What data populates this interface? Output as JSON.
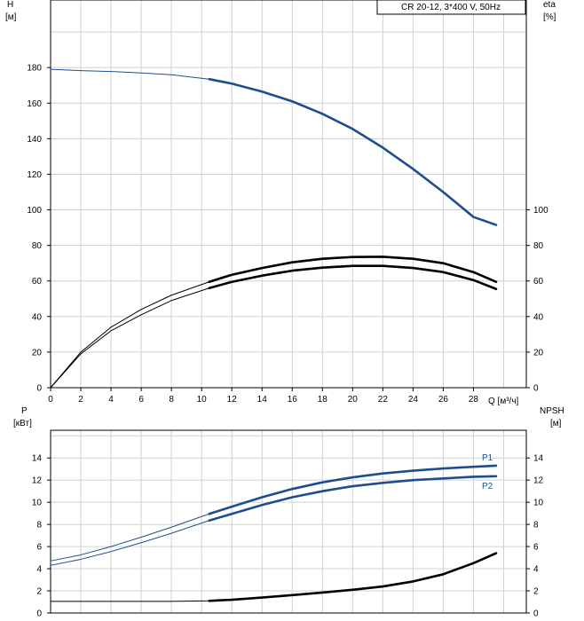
{
  "chart_data": [
    {
      "type": "line",
      "title": "CR 20-12, 3*400 V, 50Hz",
      "xlabel": "Q [м³/ч]",
      "ylabel_left": [
        "H",
        "[м]"
      ],
      "ylabel_right": [
        "eta",
        "[%]"
      ],
      "xlim": [
        0,
        31.5
      ],
      "ylim": [
        0,
        218
      ],
      "x_ticks": [
        "0",
        "2",
        "4",
        "6",
        "8",
        "10",
        "12",
        "14",
        "16",
        "18",
        "20",
        "22",
        "24",
        "26",
        "28"
      ],
      "y_ticks_left": [
        "0",
        "20",
        "40",
        "60",
        "80",
        "100",
        "120",
        "140",
        "160",
        "180"
      ],
      "y_ticks_right": [
        "0",
        "20",
        "40",
        "60",
        "80",
        "100"
      ],
      "grid": true,
      "series": [
        {
          "color": "#1f4e8c",
          "x": [
            0,
            2,
            4,
            6,
            8,
            10.5,
            12,
            14,
            16,
            18,
            20,
            22,
            24,
            26,
            28,
            29.5
          ],
          "y": [
            179,
            178.3,
            177.8,
            177,
            176,
            173.5,
            171,
            166.5,
            161,
            154,
            145.5,
            135,
            123,
            110,
            96,
            91.5
          ],
          "active_from": 10.5
        },
        {
          "color": "#000000",
          "x": [
            0,
            2,
            4,
            6,
            8,
            10.5,
            12,
            14,
            16,
            18,
            20,
            22,
            24,
            26,
            28,
            29.5
          ],
          "y": [
            0,
            19,
            32,
            41,
            49,
            56,
            59.5,
            63,
            65.8,
            67.5,
            68.5,
            68.5,
            67.3,
            65,
            60.5,
            55.5
          ],
          "active_from": 10.5
        },
        {
          "color": "#000000",
          "x": [
            0,
            2,
            4,
            6,
            8,
            10.5,
            12,
            14,
            16,
            18,
            20,
            22,
            24,
            26,
            28,
            29.5
          ],
          "y": [
            0,
            20,
            34,
            44,
            52,
            59.5,
            63.5,
            67.3,
            70.5,
            72.5,
            73.5,
            73.6,
            72.5,
            70,
            65,
            59.5
          ],
          "active_from": 10.5
        }
      ]
    },
    {
      "type": "line",
      "xlabel": "",
      "ylabel_left": [
        "P",
        "[кВт]"
      ],
      "ylabel_right": [
        "NPSH",
        "[м]"
      ],
      "xlim": [
        0,
        31.5
      ],
      "ylim": [
        0,
        16.5
      ],
      "y_ticks_left": [
        "0",
        "2",
        "4",
        "6",
        "8",
        "10",
        "12",
        "14"
      ],
      "y_ticks_right": [
        "0",
        "2",
        "4",
        "6",
        "8",
        "10",
        "12",
        "14"
      ],
      "grid": true,
      "series": [
        {
          "name": "P1",
          "color": "#1f4e8c",
          "x": [
            0,
            2,
            4,
            6,
            8,
            10.5,
            12,
            14,
            16,
            18,
            20,
            22,
            24,
            26,
            28,
            29.5
          ],
          "y": [
            4.7,
            5.25,
            6.0,
            6.85,
            7.75,
            8.95,
            9.6,
            10.45,
            11.2,
            11.8,
            12.25,
            12.6,
            12.85,
            13.05,
            13.2,
            13.3
          ],
          "active_from": 10.5
        },
        {
          "name": "P2",
          "color": "#1f4e8c",
          "x": [
            0,
            2,
            4,
            6,
            8,
            10.5,
            12,
            14,
            16,
            18,
            20,
            22,
            24,
            26,
            28,
            29.5
          ],
          "y": [
            4.3,
            4.85,
            5.55,
            6.35,
            7.2,
            8.35,
            8.95,
            9.75,
            10.45,
            11.0,
            11.45,
            11.75,
            12.0,
            12.15,
            12.3,
            12.35
          ],
          "active_from": 10.5
        },
        {
          "color": "#000000",
          "x": [
            0,
            2,
            4,
            6,
            8,
            10.5,
            12,
            14,
            16,
            18,
            20,
            22,
            24,
            26,
            28,
            29.5
          ],
          "y": [
            1.05,
            1.05,
            1.05,
            1.05,
            1.05,
            1.1,
            1.2,
            1.4,
            1.62,
            1.85,
            2.1,
            2.4,
            2.85,
            3.5,
            4.5,
            5.4
          ],
          "active_from": 10.5
        }
      ]
    }
  ]
}
